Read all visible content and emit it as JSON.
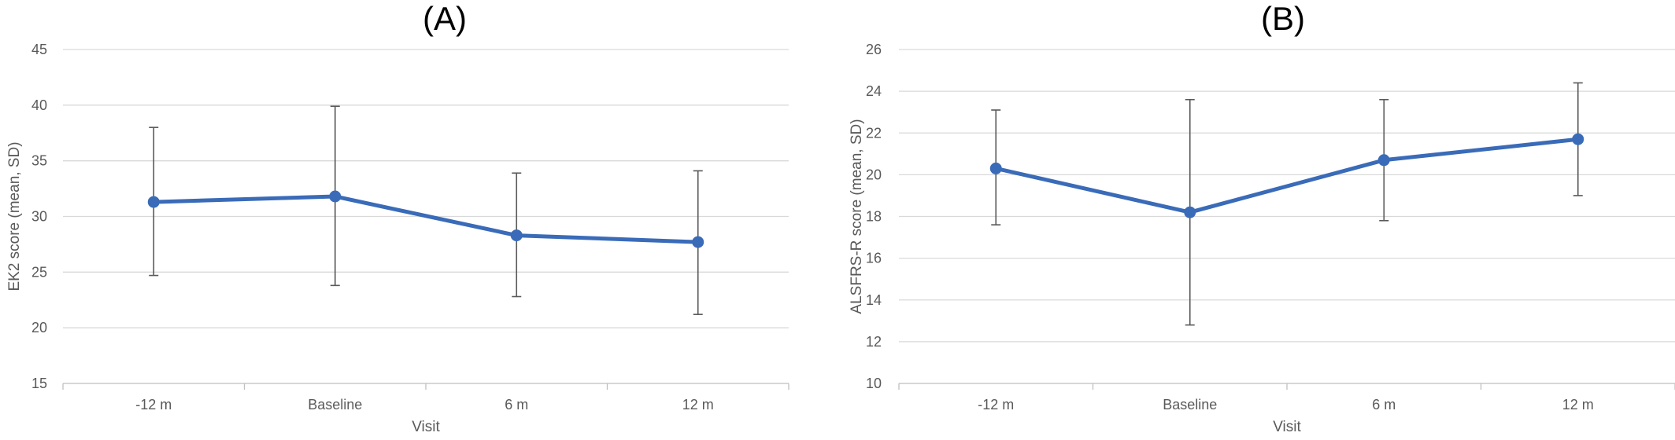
{
  "colors": {
    "series": "#3a6bb8",
    "error_bar": "#595959",
    "grid": "#d9d9d9",
    "text": "#595959"
  },
  "chart_data": [
    {
      "type": "line",
      "title": "(A)",
      "xlabel": "Visit",
      "ylabel": "EK2 score (mean, SD)",
      "categories": [
        "-12 m",
        "Baseline",
        "6 m",
        "12 m"
      ],
      "ylim": [
        15,
        45
      ],
      "yticks": [
        15,
        20,
        25,
        30,
        35,
        40,
        45
      ],
      "grid": true,
      "series": [
        {
          "values": [
            31.3,
            31.8,
            28.3,
            27.7
          ],
          "error_low": [
            24.7,
            23.8,
            22.8,
            21.2
          ],
          "error_high": [
            38.0,
            39.9,
            33.9,
            34.1
          ]
        }
      ]
    },
    {
      "type": "line",
      "title": "(B)",
      "xlabel": "Visit",
      "ylabel": "ALSFRS-R score (mean, SD)",
      "categories": [
        "-12 m",
        "Baseline",
        "6 m",
        "12 m"
      ],
      "ylim": [
        10,
        26
      ],
      "yticks": [
        10,
        12,
        14,
        16,
        18,
        20,
        22,
        24,
        26
      ],
      "grid": true,
      "series": [
        {
          "values": [
            20.3,
            18.2,
            20.7,
            21.7
          ],
          "error_low": [
            17.6,
            12.8,
            17.8,
            19.0
          ],
          "error_high": [
            23.1,
            23.6,
            23.6,
            24.4
          ]
        }
      ]
    }
  ]
}
